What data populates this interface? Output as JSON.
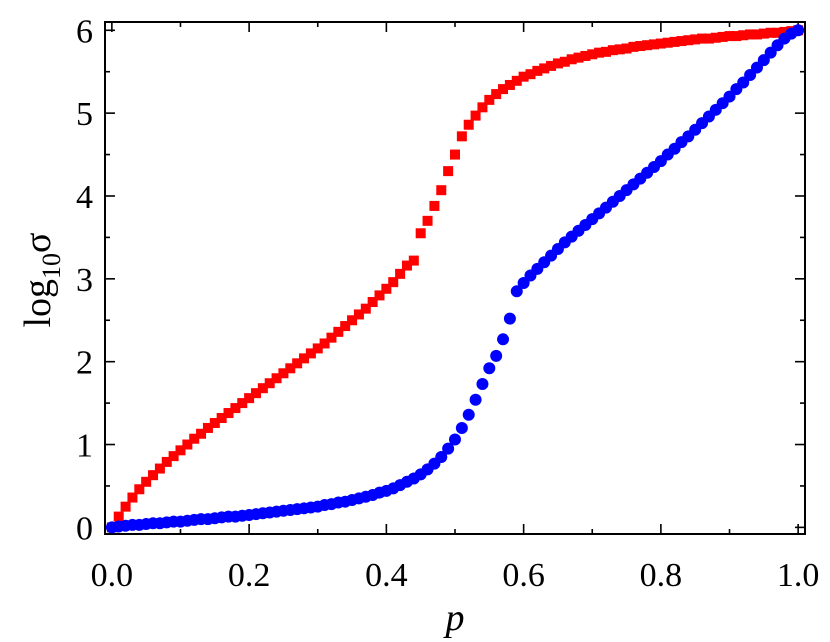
{
  "chart_data": {
    "type": "scatter",
    "xlabel": "p",
    "ylabel_main": "log",
    "ylabel_sub": "10",
    "ylabel_sym": "σ",
    "xlim": [
      -0.01,
      1.01
    ],
    "ylim": [
      -0.08,
      6.1
    ],
    "x_ticks": [
      0.0,
      0.2,
      0.4,
      0.6,
      0.8,
      1.0
    ],
    "x_tick_labels": [
      "0.0",
      "0.2",
      "0.4",
      "0.6",
      "0.8",
      "1.0"
    ],
    "y_ticks": [
      0,
      1,
      2,
      3,
      4,
      5,
      6
    ],
    "y_tick_labels": [
      "0",
      "1",
      "2",
      "3",
      "4",
      "5",
      "6"
    ],
    "grid": false,
    "legend": "none",
    "series": [
      {
        "marker": "square",
        "color": "#ff0000",
        "x": [
          0.0,
          0.01,
          0.02,
          0.03,
          0.04,
          0.05,
          0.06,
          0.07,
          0.08,
          0.09,
          0.1,
          0.11,
          0.12,
          0.13,
          0.14,
          0.15,
          0.16,
          0.17,
          0.18,
          0.19,
          0.2,
          0.21,
          0.22,
          0.23,
          0.24,
          0.25,
          0.26,
          0.27,
          0.28,
          0.29,
          0.3,
          0.31,
          0.32,
          0.33,
          0.34,
          0.35,
          0.36,
          0.37,
          0.38,
          0.39,
          0.4,
          0.41,
          0.42,
          0.43,
          0.44,
          0.45,
          0.46,
          0.47,
          0.48,
          0.49,
          0.5,
          0.51,
          0.52,
          0.53,
          0.54,
          0.55,
          0.56,
          0.57,
          0.58,
          0.59,
          0.6,
          0.61,
          0.62,
          0.63,
          0.64,
          0.65,
          0.66,
          0.67,
          0.68,
          0.69,
          0.7,
          0.71,
          0.72,
          0.73,
          0.74,
          0.75,
          0.76,
          0.77,
          0.78,
          0.79,
          0.8,
          0.81,
          0.82,
          0.83,
          0.84,
          0.85,
          0.86,
          0.87,
          0.88,
          0.89,
          0.9,
          0.91,
          0.92,
          0.93,
          0.94,
          0.95,
          0.96,
          0.97,
          0.98,
          0.99,
          1.0
        ],
        "y": [
          0.0,
          0.13,
          0.25,
          0.36,
          0.46,
          0.55,
          0.63,
          0.71,
          0.79,
          0.86,
          0.93,
          1.0,
          1.07,
          1.13,
          1.2,
          1.26,
          1.32,
          1.38,
          1.44,
          1.5,
          1.56,
          1.62,
          1.68,
          1.74,
          1.8,
          1.86,
          1.92,
          1.98,
          2.04,
          2.1,
          2.16,
          2.22,
          2.29,
          2.36,
          2.43,
          2.5,
          2.57,
          2.64,
          2.72,
          2.8,
          2.88,
          2.96,
          3.06,
          3.16,
          3.22,
          3.55,
          3.7,
          3.88,
          4.07,
          4.3,
          4.5,
          4.72,
          4.86,
          4.97,
          5.07,
          5.16,
          5.23,
          5.29,
          5.34,
          5.39,
          5.44,
          5.47,
          5.51,
          5.54,
          5.57,
          5.6,
          5.62,
          5.65,
          5.67,
          5.69,
          5.71,
          5.73,
          5.74,
          5.76,
          5.77,
          5.78,
          5.8,
          5.81,
          5.82,
          5.83,
          5.84,
          5.85,
          5.86,
          5.87,
          5.88,
          5.89,
          5.9,
          5.9,
          5.91,
          5.92,
          5.93,
          5.93,
          5.94,
          5.95,
          5.95,
          5.96,
          5.97,
          5.97,
          5.98,
          5.99,
          6.0
        ]
      },
      {
        "marker": "circle",
        "color": "#0000ff",
        "x": [
          0.0,
          0.01,
          0.02,
          0.03,
          0.04,
          0.05,
          0.06,
          0.07,
          0.08,
          0.09,
          0.1,
          0.11,
          0.12,
          0.13,
          0.14,
          0.15,
          0.16,
          0.17,
          0.18,
          0.19,
          0.2,
          0.21,
          0.22,
          0.23,
          0.24,
          0.25,
          0.26,
          0.27,
          0.28,
          0.29,
          0.3,
          0.31,
          0.32,
          0.33,
          0.34,
          0.35,
          0.36,
          0.37,
          0.38,
          0.39,
          0.4,
          0.41,
          0.42,
          0.43,
          0.44,
          0.45,
          0.46,
          0.47,
          0.48,
          0.49,
          0.5,
          0.51,
          0.52,
          0.53,
          0.54,
          0.55,
          0.56,
          0.57,
          0.58,
          0.59,
          0.6,
          0.61,
          0.62,
          0.63,
          0.64,
          0.65,
          0.66,
          0.67,
          0.68,
          0.69,
          0.7,
          0.71,
          0.72,
          0.73,
          0.74,
          0.75,
          0.76,
          0.77,
          0.78,
          0.79,
          0.8,
          0.81,
          0.82,
          0.83,
          0.84,
          0.85,
          0.86,
          0.87,
          0.88,
          0.89,
          0.9,
          0.91,
          0.92,
          0.93,
          0.94,
          0.95,
          0.96,
          0.97,
          0.98,
          0.99,
          1.0
        ],
        "y": [
          0.0,
          0.01,
          0.02,
          0.03,
          0.03,
          0.04,
          0.05,
          0.05,
          0.06,
          0.07,
          0.07,
          0.08,
          0.09,
          0.1,
          0.1,
          0.11,
          0.12,
          0.13,
          0.13,
          0.14,
          0.15,
          0.16,
          0.17,
          0.18,
          0.19,
          0.2,
          0.21,
          0.22,
          0.23,
          0.24,
          0.25,
          0.27,
          0.28,
          0.3,
          0.31,
          0.33,
          0.35,
          0.37,
          0.39,
          0.42,
          0.44,
          0.47,
          0.51,
          0.55,
          0.59,
          0.64,
          0.7,
          0.77,
          0.85,
          0.95,
          1.06,
          1.2,
          1.36,
          1.54,
          1.73,
          1.92,
          2.07,
          2.27,
          2.52,
          2.85,
          2.95,
          3.04,
          3.12,
          3.2,
          3.28,
          3.36,
          3.44,
          3.51,
          3.58,
          3.65,
          3.72,
          3.79,
          3.86,
          3.93,
          4.0,
          4.07,
          4.14,
          4.21,
          4.28,
          4.35,
          4.42,
          4.5,
          4.57,
          4.65,
          4.72,
          4.8,
          4.88,
          4.96,
          5.04,
          5.12,
          5.2,
          5.29,
          5.37,
          5.46,
          5.55,
          5.64,
          5.73,
          5.82,
          5.9,
          5.96,
          6.0
        ]
      }
    ]
  }
}
